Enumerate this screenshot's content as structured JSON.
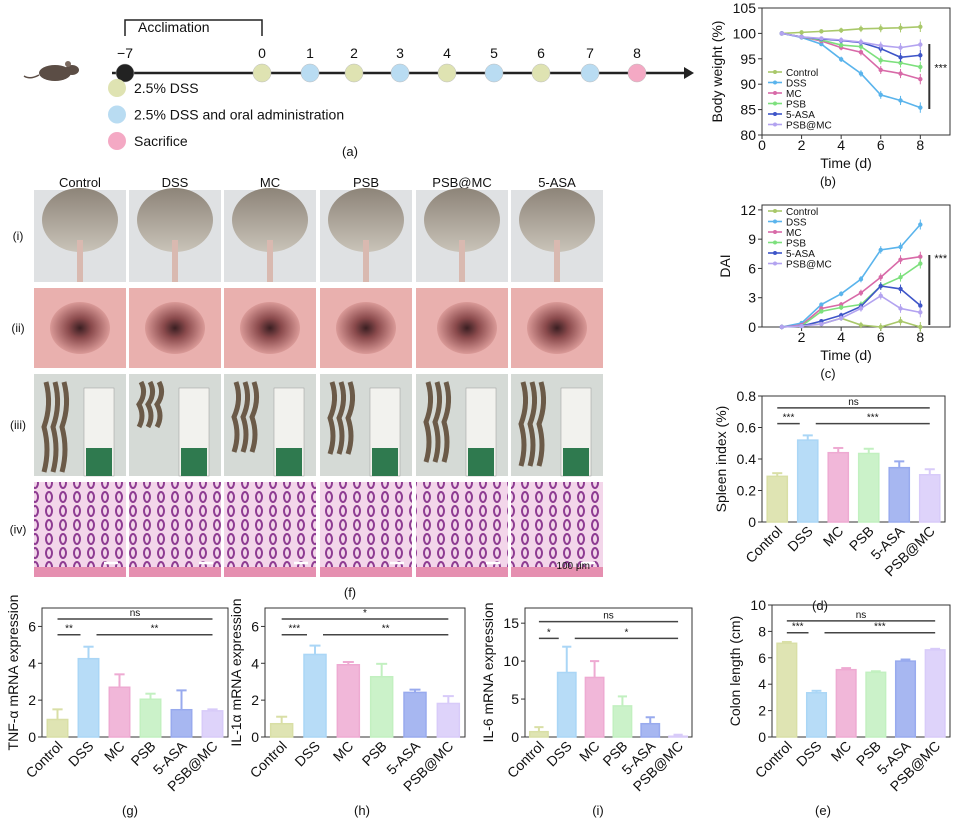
{
  "group_colors": {
    "Control": "#d9dfa6",
    "DSS": "#aad6f6",
    "MC": "#eeaad2",
    "PSB": "#c2f0c0",
    "5-ASA": "#98aaee",
    "PSB@MC": "#d8cbf9"
  },
  "line_colors": {
    "Control": "#a9c86a",
    "DSS": "#5ab4ec",
    "MC": "#d86aa8",
    "PSB": "#7de07d",
    "5-ASA": "#3e55c8",
    "PSB@MC": "#b3a3f0"
  },
  "timeline": {
    "panel_label": "(a)",
    "acclimation_label": "Acclimation",
    "days": [
      "−7",
      "0",
      "1",
      "2",
      "3",
      "4",
      "5",
      "6",
      "7",
      "8"
    ],
    "day_markers": [
      "black",
      "dss",
      "dss-oral",
      "dss",
      "dss-oral",
      "dss",
      "dss-oral",
      "dss",
      "dss-oral",
      "sacrifice"
    ],
    "marker_colors": {
      "black": "#222222",
      "dss": "#dfe3b2",
      "dss-oral": "#b9dcf2",
      "sacrifice": "#f4a9c4"
    },
    "legend": [
      {
        "label": "2.5% DSS",
        "marker": "dss"
      },
      {
        "label": "2.5% DSS and oral administration",
        "marker": "dss-oral"
      },
      {
        "label": "Sacrifice",
        "marker": "sacrifice"
      }
    ]
  },
  "photos": {
    "panel_label": "(f)",
    "columns": [
      "Control",
      "DSS",
      "MC",
      "PSB",
      "PSB@MC",
      "5-ASA"
    ],
    "rows": [
      "(i)",
      "(ii)",
      "(iii)",
      "(iv)"
    ],
    "scale_bar": "100 μm"
  },
  "chart_data": [
    {
      "id": "b",
      "type": "line",
      "panel_label": "(b)",
      "xlabel": "Time (d)",
      "ylabel": "Body weight (%)",
      "xlim": [
        0,
        9.5
      ],
      "ylim": [
        80,
        105
      ],
      "xticks": [
        0,
        2,
        4,
        6,
        8
      ],
      "yticks": [
        80,
        85,
        90,
        95,
        100,
        105
      ],
      "x": [
        1,
        2,
        3,
        4,
        5,
        6,
        7,
        8
      ],
      "legend": "left",
      "significance": "***",
      "series": [
        {
          "name": "Control",
          "values": [
            100,
            100.2,
            100.4,
            100.6,
            100.9,
            101,
            101.1,
            101.3
          ]
        },
        {
          "name": "DSS",
          "values": [
            100,
            99.2,
            97.9,
            94.9,
            92.1,
            87.9,
            86.8,
            85.4
          ]
        },
        {
          "name": "MC",
          "values": [
            100,
            99.3,
            98.5,
            97.2,
            96.3,
            92.8,
            92.1,
            91
          ]
        },
        {
          "name": "PSB",
          "values": [
            100,
            99.3,
            98.7,
            97.7,
            97.4,
            94.7,
            94.2,
            93.4
          ]
        },
        {
          "name": "5-ASA",
          "values": [
            100,
            99.3,
            98.9,
            98.6,
            98.2,
            97,
            95.3,
            95.7
          ]
        },
        {
          "name": "PSB@MC",
          "values": [
            100,
            99.3,
            99,
            98.7,
            98.3,
            97.6,
            97.2,
            97.8
          ]
        }
      ]
    },
    {
      "id": "c",
      "type": "line",
      "panel_label": "(c)",
      "xlabel": "Time (d)",
      "ylabel": "DAI",
      "xlim": [
        0,
        9.5
      ],
      "ylim": [
        0,
        12.5
      ],
      "xticks": [
        2,
        4,
        6,
        8
      ],
      "yticks": [
        0,
        3,
        6,
        9,
        12
      ],
      "x": [
        1,
        2,
        3,
        4,
        5,
        6,
        7,
        8
      ],
      "legend": "top-left",
      "significance": "***",
      "series": [
        {
          "name": "Control",
          "values": [
            0,
            0.2,
            0.3,
            0.9,
            0.2,
            0,
            0.6,
            0
          ]
        },
        {
          "name": "DSS",
          "values": [
            0,
            0.4,
            2.3,
            3.4,
            4.9,
            7.9,
            8.2,
            10.5
          ]
        },
        {
          "name": "MC",
          "values": [
            0,
            0.2,
            1.9,
            2.3,
            3.5,
            5.1,
            6.9,
            7.2
          ]
        },
        {
          "name": "PSB",
          "values": [
            0,
            0.1,
            1.6,
            2,
            2.3,
            4.2,
            5.1,
            6.5
          ]
        },
        {
          "name": "5-ASA",
          "values": [
            0,
            0.1,
            0.6,
            1.2,
            2.1,
            4.2,
            3.9,
            2.2
          ]
        },
        {
          "name": "PSB@MC",
          "values": [
            0,
            0.1,
            0.3,
            0.9,
            1.9,
            3.2,
            1.9,
            1.5
          ]
        }
      ]
    },
    {
      "id": "d",
      "type": "bar",
      "panel_label": "(d)",
      "ylabel": "Spleen index (%)",
      "ylim": [
        0,
        0.8
      ],
      "yticks": [
        0,
        0.2,
        0.4,
        0.6,
        0.8
      ],
      "categories": [
        "Control",
        "DSS",
        "MC",
        "PSB",
        "5-ASA",
        "PSB@MC"
      ],
      "values": [
        0.29,
        0.52,
        0.44,
        0.435,
        0.345,
        0.3
      ],
      "errors": [
        0.02,
        0.03,
        0.03,
        0.03,
        0.04,
        0.035
      ],
      "significance": [
        {
          "from": 0,
          "to": 1,
          "y": 0.625,
          "label": "***"
        },
        {
          "from": 1,
          "to": 5,
          "y": 0.625,
          "label": "***"
        },
        {
          "from": 0,
          "to": 5,
          "y": 0.725,
          "label": "ns"
        }
      ]
    },
    {
      "id": "e",
      "type": "bar",
      "panel_label": "(e)",
      "ylabel": "Colon length (cm)",
      "ylim": [
        0,
        10
      ],
      "yticks": [
        0,
        2,
        4,
        6,
        8,
        10
      ],
      "categories": [
        "Control",
        "DSS",
        "MC",
        "PSB",
        "5-ASA",
        "PSB@MC"
      ],
      "values": [
        7.1,
        3.35,
        5.1,
        4.9,
        5.75,
        6.6
      ],
      "errors": [
        0.1,
        0.15,
        0.12,
        0.08,
        0.12,
        0.08
      ],
      "significance": [
        {
          "from": 0,
          "to": 1,
          "y": 7.9,
          "label": "***"
        },
        {
          "from": 1,
          "to": 5,
          "y": 7.9,
          "label": "***"
        },
        {
          "from": 0,
          "to": 5,
          "y": 8.8,
          "label": "ns"
        }
      ]
    },
    {
      "id": "g",
      "type": "bar",
      "panel_label": "(g)",
      "ylabel": "TNF-α mRNA expression",
      "ylim": [
        0,
        7
      ],
      "yticks": [
        0,
        2,
        4,
        6
      ],
      "categories": [
        "Control",
        "DSS",
        "MC",
        "PSB",
        "5-ASA",
        "PSB@MC"
      ],
      "values": [
        0.95,
        4.25,
        2.7,
        2.05,
        1.48,
        1.42
      ],
      "errors": [
        0.55,
        0.65,
        0.7,
        0.3,
        1.05,
        0.08
      ],
      "significance": [
        {
          "from": 0,
          "to": 1,
          "y": 5.55,
          "label": "**"
        },
        {
          "from": 1,
          "to": 5,
          "y": 5.55,
          "label": "**"
        },
        {
          "from": 0,
          "to": 5,
          "y": 6.4,
          "label": "ns"
        }
      ]
    },
    {
      "id": "h",
      "type": "bar",
      "panel_label": "(h)",
      "ylabel": "IL-1α mRNA expression",
      "ylim": [
        0,
        7
      ],
      "yticks": [
        0,
        2,
        4,
        6
      ],
      "categories": [
        "Control",
        "DSS",
        "MC",
        "PSB",
        "5-ASA",
        "PSB@MC"
      ],
      "values": [
        0.72,
        4.48,
        3.92,
        3.27,
        2.42,
        1.82
      ],
      "errors": [
        0.38,
        0.48,
        0.15,
        0.7,
        0.15,
        0.4
      ],
      "significance": [
        {
          "from": 0,
          "to": 1,
          "y": 5.55,
          "label": "***"
        },
        {
          "from": 1,
          "to": 5,
          "y": 5.55,
          "label": "**"
        },
        {
          "from": 0,
          "to": 5,
          "y": 6.4,
          "label": "*"
        }
      ]
    },
    {
      "id": "i",
      "type": "bar",
      "panel_label": "(i)",
      "ylabel": "IL-6 mRNA expression",
      "ylim": [
        0,
        17
      ],
      "yticks": [
        0,
        5,
        10,
        15
      ],
      "categories": [
        "Control",
        "DSS",
        "MC",
        "PSB",
        "5-ASA",
        "PSB@MC"
      ],
      "values": [
        0.7,
        8.5,
        7.85,
        4.1,
        1.75,
        0.1
      ],
      "errors": [
        0.6,
        3.4,
        2.15,
        1.25,
        0.85,
        0.2
      ],
      "significance": [
        {
          "from": 0,
          "to": 1,
          "y": 13,
          "label": "*"
        },
        {
          "from": 1,
          "to": 5,
          "y": 13,
          "label": "*"
        },
        {
          "from": 0,
          "to": 5,
          "y": 15.2,
          "label": "ns"
        }
      ]
    }
  ]
}
